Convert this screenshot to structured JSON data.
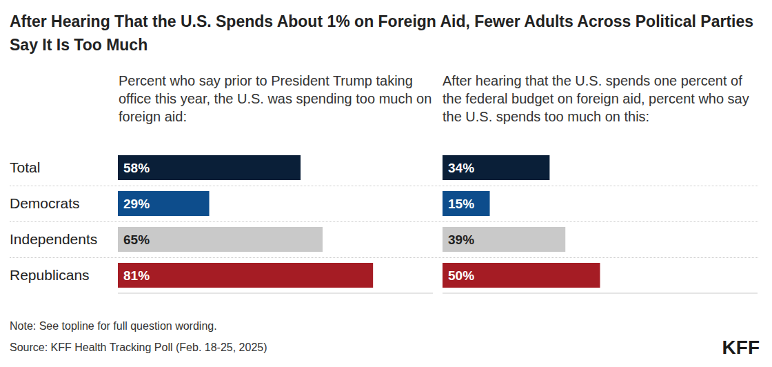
{
  "title": "After Hearing That the U.S. Spends About 1% on Foreign Aid, Fewer Adults Across Political Parties Say It Is Too Much",
  "note": "Note: See topline for full question wording.",
  "source": "Source: KFF Health Tracking Poll (Feb. 18-25, 2025)",
  "logo": "KFF",
  "chart_data": [
    {
      "type": "bar",
      "orientation": "horizontal",
      "subtitle": "Percent who say prior to President Trump taking office this year, the U.S. was spending too much on foreign aid:",
      "categories": [
        "Total",
        "Democrats",
        "Independents",
        "Republicans"
      ],
      "values": [
        58,
        29,
        65,
        81
      ],
      "value_labels": [
        "58%",
        "29%",
        "65%",
        "81%"
      ],
      "colors": [
        "#0a1f38",
        "#0d4d8c",
        "#c9c9c9",
        "#a51c24"
      ],
      "xlim": [
        0,
        100
      ],
      "tick_labels": "y",
      "data_labels": true,
      "grid": false
    },
    {
      "type": "bar",
      "orientation": "horizontal",
      "subtitle": "After hearing that the U.S. spends one percent of the federal budget on foreign aid, percent who say the U.S. spends too much on this:",
      "categories": [
        "Total",
        "Democrats",
        "Independents",
        "Republicans"
      ],
      "values": [
        34,
        15,
        39,
        50
      ],
      "value_labels": [
        "34%",
        "15%",
        "39%",
        "50%"
      ],
      "colors": [
        "#0a1f38",
        "#0d4d8c",
        "#c9c9c9",
        "#a51c24"
      ],
      "xlim": [
        0,
        100
      ],
      "tick_labels": false,
      "data_labels": true,
      "grid": false
    }
  ]
}
